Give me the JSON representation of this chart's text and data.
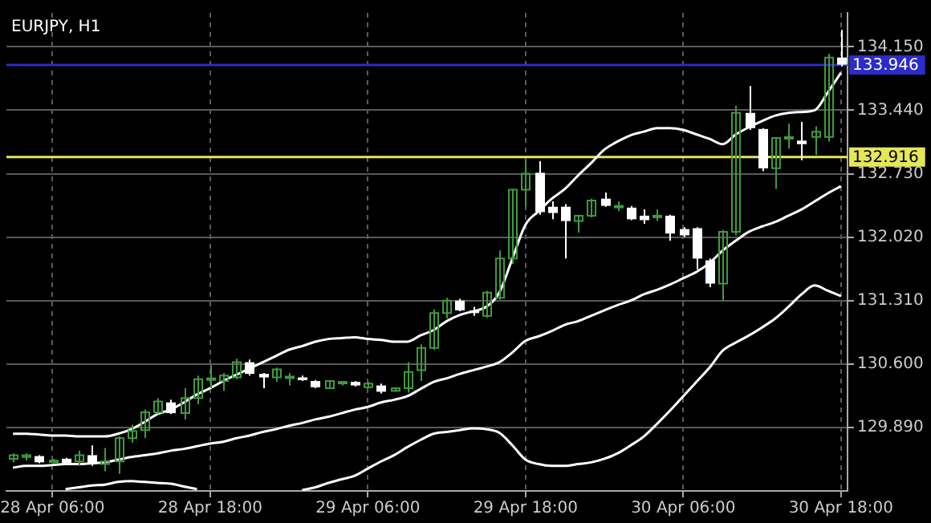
{
  "chart_data": {
    "type": "candlestick",
    "title": "EURJPY, H1",
    "categories": [
      null,
      null,
      null,
      "28 Apr 06:00",
      null,
      null,
      null,
      null,
      null,
      null,
      null,
      null,
      null,
      null,
      null,
      "28 Apr 18:00",
      null,
      null,
      null,
      null,
      null,
      null,
      null,
      null,
      null,
      null,
      null,
      "29 Apr 06:00",
      null,
      null,
      null,
      null,
      null,
      null,
      null,
      null,
      null,
      null,
      null,
      "29 Apr 18:00",
      null,
      null,
      null,
      null,
      null,
      null,
      null,
      null,
      null,
      null,
      null,
      "30 Apr 06:00",
      null,
      null,
      null,
      null,
      null,
      null,
      null,
      null,
      null,
      null,
      null,
      "30 Apr 18:00"
    ],
    "ohlc": [
      [
        129.54,
        129.6,
        129.5,
        129.58
      ],
      [
        129.56,
        129.6,
        129.52,
        129.58
      ],
      [
        129.57,
        129.58,
        129.49,
        129.5
      ],
      [
        129.51,
        129.54,
        129.49,
        129.52
      ],
      [
        129.54,
        129.55,
        129.48,
        129.49
      ],
      [
        129.51,
        129.63,
        129.46,
        129.58
      ],
      [
        129.58,
        129.69,
        129.46,
        129.48
      ],
      [
        129.48,
        129.66,
        129.4,
        129.51
      ],
      [
        129.51,
        129.79,
        129.37,
        129.77
      ],
      [
        129.77,
        129.92,
        129.72,
        129.85
      ],
      [
        129.86,
        130.09,
        129.77,
        130.06
      ],
      [
        130.06,
        130.22,
        130.04,
        130.18
      ],
      [
        130.17,
        130.2,
        130.04,
        130.05
      ],
      [
        130.05,
        130.33,
        129.98,
        130.22
      ],
      [
        130.22,
        130.47,
        130.15,
        130.43
      ],
      [
        130.43,
        130.59,
        130.33,
        130.44
      ],
      [
        130.41,
        130.5,
        130.3,
        130.47
      ],
      [
        130.45,
        130.66,
        130.43,
        130.62
      ],
      [
        130.62,
        130.65,
        130.47,
        130.49
      ],
      [
        130.49,
        130.5,
        130.33,
        130.45
      ],
      [
        130.45,
        130.56,
        130.4,
        130.54
      ],
      [
        130.46,
        130.5,
        130.36,
        130.46
      ],
      [
        130.45,
        130.47,
        130.41,
        130.42
      ],
      [
        130.41,
        130.42,
        130.33,
        130.34
      ],
      [
        130.33,
        130.42,
        130.32,
        130.41
      ],
      [
        130.4,
        130.41,
        130.36,
        130.4
      ],
      [
        130.4,
        130.41,
        130.35,
        130.36
      ],
      [
        130.34,
        130.4,
        130.33,
        130.38
      ],
      [
        130.36,
        130.38,
        130.27,
        130.29
      ],
      [
        130.3,
        130.34,
        130.29,
        130.33
      ],
      [
        130.33,
        130.62,
        130.28,
        130.51
      ],
      [
        130.53,
        130.82,
        130.41,
        130.78
      ],
      [
        130.78,
        131.21,
        130.76,
        131.17
      ],
      [
        131.17,
        131.34,
        131.11,
        131.31
      ],
      [
        131.31,
        131.33,
        131.19,
        131.2
      ],
      [
        131.2,
        131.24,
        131.14,
        131.17
      ],
      [
        131.14,
        131.42,
        131.12,
        131.4
      ],
      [
        131.34,
        131.87,
        131.32,
        131.78
      ],
      [
        131.78,
        132.56,
        131.72,
        132.55
      ],
      [
        132.55,
        132.88,
        132.36,
        132.73
      ],
      [
        132.74,
        132.87,
        132.27,
        132.3
      ],
      [
        132.36,
        132.42,
        132.22,
        132.29
      ],
      [
        132.36,
        132.39,
        131.78,
        132.2
      ],
      [
        132.2,
        132.27,
        132.07,
        132.26
      ],
      [
        132.26,
        132.45,
        132.24,
        132.43
      ],
      [
        132.45,
        132.52,
        132.36,
        132.37
      ],
      [
        132.37,
        132.42,
        132.31,
        132.37
      ],
      [
        132.35,
        132.37,
        132.21,
        132.22
      ],
      [
        132.26,
        132.33,
        132.17,
        132.21
      ],
      [
        132.25,
        132.33,
        132.2,
        132.26
      ],
      [
        132.26,
        132.27,
        131.98,
        132.06
      ],
      [
        132.11,
        132.13,
        132.02,
        132.04
      ],
      [
        132.12,
        132.13,
        131.66,
        131.78
      ],
      [
        131.76,
        131.78,
        131.46,
        131.5
      ],
      [
        131.5,
        132.1,
        131.31,
        132.08
      ],
      [
        132.08,
        133.49,
        132.04,
        133.41
      ],
      [
        133.41,
        133.71,
        133.22,
        133.24
      ],
      [
        133.23,
        133.24,
        132.76,
        132.79
      ],
      [
        132.79,
        133.14,
        132.56,
        133.13
      ],
      [
        133.13,
        133.29,
        133.01,
        133.14
      ],
      [
        133.1,
        133.31,
        132.88,
        133.06
      ],
      [
        133.14,
        133.26,
        132.94,
        133.2
      ],
      [
        133.14,
        134.07,
        133.09,
        134.03
      ],
      [
        134.03,
        134.34,
        133.93,
        133.95
      ]
    ],
    "colors": [
      "#3f9a3f",
      "#3f9a3f",
      "#ffffff",
      "#3f9a3f",
      "#ffffff",
      "#3f9a3f",
      "#ffffff",
      "#3f9a3f",
      "#3f9a3f",
      "#3f9a3f",
      "#3f9a3f",
      "#3f9a3f",
      "#ffffff",
      "#3f9a3f",
      "#3f9a3f",
      "#3f9a3f",
      "#3f9a3f",
      "#3f9a3f",
      "#ffffff",
      "#ffffff",
      "#3f9a3f",
      "#3f9a3f",
      "#ffffff",
      "#ffffff",
      "#3f9a3f",
      "#3f9a3f",
      "#ffffff",
      "#3f9a3f",
      "#ffffff",
      "#3f9a3f",
      "#3f9a3f",
      "#3f9a3f",
      "#3f9a3f",
      "#3f9a3f",
      "#ffffff",
      "#ffffff",
      "#3f9a3f",
      "#3f9a3f",
      "#3f9a3f",
      "#3f9a3f",
      "#ffffff",
      "#ffffff",
      "#ffffff",
      "#3f9a3f",
      "#3f9a3f",
      "#ffffff",
      "#3f9a3f",
      "#ffffff",
      "#ffffff",
      "#3f9a3f",
      "#ffffff",
      "#ffffff",
      "#ffffff",
      "#ffffff",
      "#3f9a3f",
      "#3f9a3f",
      "#ffffff",
      "#ffffff",
      "#3f9a3f",
      "#3f9a3f",
      "#ffffff",
      "#3f9a3f",
      "#3f9a3f",
      "#ffffff"
    ],
    "series": [
      {
        "type": "line",
        "color": "#ffffff",
        "values": [
          129.82,
          129.82,
          129.81,
          129.8,
          129.8,
          129.79,
          129.79,
          129.79,
          129.82,
          129.87,
          129.95,
          130.04,
          130.09,
          130.17,
          130.26,
          130.33,
          130.41,
          130.48,
          130.55,
          130.62,
          130.69,
          130.76,
          130.8,
          130.85,
          130.88,
          130.89,
          130.9,
          130.88,
          130.87,
          130.85,
          130.85,
          130.92,
          130.98,
          131.08,
          131.15,
          131.19,
          131.24,
          131.4,
          131.78,
          132.16,
          132.31,
          132.45,
          132.56,
          132.71,
          132.85,
          133.0,
          133.09,
          133.16,
          133.2,
          133.24,
          133.24,
          133.22,
          133.17,
          133.12,
          133.06,
          133.17,
          133.25,
          133.32,
          133.38,
          133.41,
          133.42,
          133.44,
          133.64,
          133.86
        ]
      },
      {
        "type": "line",
        "color": "#ffffff",
        "values": [
          129.44,
          129.46,
          129.46,
          129.47,
          129.48,
          129.48,
          129.49,
          129.5,
          129.53,
          129.56,
          129.58,
          129.6,
          129.63,
          129.65,
          129.68,
          129.71,
          129.73,
          129.77,
          129.8,
          129.84,
          129.87,
          129.91,
          129.94,
          129.98,
          130.01,
          130.05,
          130.09,
          130.12,
          130.17,
          130.2,
          130.24,
          130.32,
          130.4,
          130.44,
          130.49,
          130.53,
          130.57,
          130.62,
          130.73,
          130.86,
          130.91,
          130.97,
          131.04,
          131.08,
          131.14,
          131.2,
          131.26,
          131.31,
          131.38,
          131.43,
          131.49,
          131.56,
          131.63,
          131.73,
          131.87,
          131.98,
          132.08,
          132.14,
          132.19,
          132.26,
          132.33,
          132.42,
          132.51,
          132.59
        ]
      },
      {
        "type": "line",
        "color": "#ffffff",
        "values": [
          null,
          null,
          null,
          null,
          129.2,
          129.22,
          129.24,
          129.25,
          129.28,
          129.29,
          129.28,
          129.27,
          129.26,
          129.23,
          129.2,
          null,
          null,
          null,
          null,
          null,
          null,
          null,
          129.19,
          129.22,
          129.27,
          129.31,
          129.35,
          129.43,
          129.51,
          129.58,
          129.67,
          129.75,
          129.82,
          129.84,
          129.86,
          129.88,
          129.87,
          129.83,
          129.69,
          129.53,
          129.48,
          129.46,
          129.46,
          129.48,
          129.5,
          129.54,
          129.6,
          129.69,
          129.79,
          129.93,
          130.08,
          130.24,
          130.4,
          130.56,
          130.75,
          130.84,
          130.92,
          131.01,
          131.11,
          131.24,
          131.38,
          131.48,
          131.42,
          131.36
        ]
      }
    ],
    "ylim": [
      129.18,
      134.53
    ],
    "yticks": [
      {
        "value": 129.89,
        "label": "129.890"
      },
      {
        "value": 130.6,
        "label": "130.600"
      },
      {
        "value": 131.31,
        "label": "131.310"
      },
      {
        "value": 132.02,
        "label": "132.020"
      },
      {
        "value": 132.73,
        "label": "132.730"
      },
      {
        "value": 133.44,
        "label": "133.440"
      },
      {
        "value": 134.15,
        "label": "134.150"
      }
    ],
    "ref_lines": [
      {
        "axis": "y",
        "value": 133.946,
        "label": "133.946",
        "color": "#2c2cc8"
      },
      {
        "axis": "y",
        "value": 132.916,
        "label": "132.916",
        "color": "#e6e65a"
      }
    ],
    "grid": true
  }
}
